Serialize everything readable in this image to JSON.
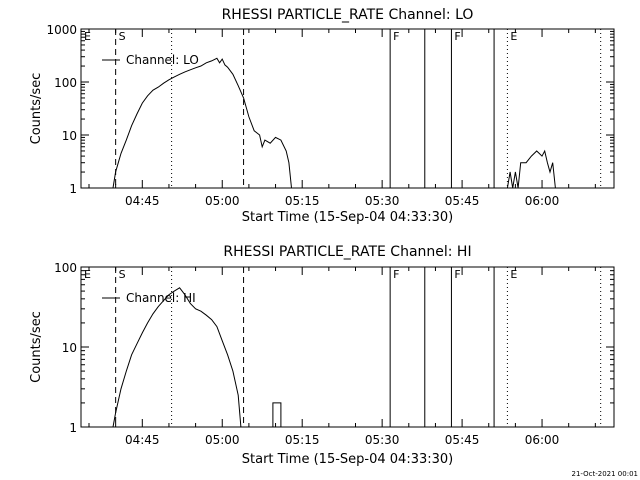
{
  "footer": {
    "date_stamp": "21-Oct-2021 00:01"
  },
  "chart_data": [
    {
      "type": "line",
      "title": "RHESSI PARTICLE_RATE Channel: LO",
      "xlabel": "Start Time (15-Sep-04 04:33:30)",
      "ylabel": "Counts/sec",
      "y_scale": "log",
      "ylim": [
        1,
        1000
      ],
      "xlim": [
        "04:33:30",
        "06:13:30"
      ],
      "x_ticks": [
        "04:45",
        "05:00",
        "05:15",
        "05:30",
        "05:45",
        "06:00"
      ],
      "y_ticks": [
        "1",
        "10",
        "100",
        "1000"
      ],
      "legend": {
        "label": "Channel: LO",
        "position": "top-left"
      },
      "markers": [
        {
          "time": "04:33:30",
          "style": "solid",
          "label": "E"
        },
        {
          "time": "04:40:00",
          "style": "dashed",
          "label": "S"
        },
        {
          "time": "04:50:30",
          "style": "dotted",
          "label": ""
        },
        {
          "time": "05:04:00",
          "style": "dashed",
          "label": ""
        },
        {
          "time": "05:31:30",
          "style": "solid",
          "label": "F"
        },
        {
          "time": "05:38:00",
          "style": "solid",
          "label": ""
        },
        {
          "time": "05:43:00",
          "style": "solid",
          "label": "F"
        },
        {
          "time": "05:51:00",
          "style": "solid",
          "label": ""
        },
        {
          "time": "05:53:30",
          "style": "dotted",
          "label": "E"
        },
        {
          "time": "06:11:00",
          "style": "dotted",
          "label": ""
        }
      ],
      "series": [
        {
          "segments": [
            [
              [
                "04:39:30",
                1
              ],
              [
                "04:40:00",
                2
              ],
              [
                "04:40:30",
                3
              ],
              [
                "04:41:00",
                4.5
              ],
              [
                "04:42:00",
                8
              ],
              [
                "04:43:00",
                15
              ],
              [
                "04:44:00",
                25
              ],
              [
                "04:45:00",
                40
              ],
              [
                "04:46:00",
                55
              ],
              [
                "04:47:00",
                70
              ],
              [
                "04:48:00",
                80
              ],
              [
                "04:49:00",
                95
              ],
              [
                "04:50:00",
                110
              ],
              [
                "04:51:00",
                125
              ],
              [
                "04:52:00",
                140
              ],
              [
                "04:53:00",
                155
              ],
              [
                "04:54:00",
                170
              ],
              [
                "04:55:00",
                185
              ],
              [
                "04:56:00",
                200
              ],
              [
                "04:57:00",
                230
              ],
              [
                "04:58:00",
                250
              ],
              [
                "04:59:00",
                280
              ],
              [
                "04:59:30",
                230
              ],
              [
                "05:00:00",
                270
              ],
              [
                "05:00:30",
                210
              ],
              [
                "05:01:00",
                190
              ],
              [
                "05:02:00",
                140
              ],
              [
                "05:03:00",
                85
              ],
              [
                "05:04:00",
                50
              ],
              [
                "05:05:00",
                22
              ],
              [
                "05:06:00",
                12
              ],
              [
                "05:07:00",
                10
              ],
              [
                "05:07:30",
                6
              ],
              [
                "05:08:00",
                8
              ],
              [
                "05:09:00",
                7
              ],
              [
                "05:10:00",
                9
              ],
              [
                "05:11:00",
                8
              ],
              [
                "05:12:00",
                5
              ],
              [
                "05:12:30",
                3
              ],
              [
                "05:13:00",
                1
              ]
            ],
            [
              [
                "05:53:30",
                1
              ],
              [
                "05:54:00",
                2
              ],
              [
                "05:54:30",
                1
              ],
              [
                "05:55:00",
                2
              ],
              [
                "05:55:30",
                1
              ],
              [
                "05:56:00",
                3
              ],
              [
                "05:57:00",
                3
              ],
              [
                "05:58:00",
                4
              ],
              [
                "05:59:00",
                5
              ],
              [
                "06:00:00",
                4
              ],
              [
                "06:00:30",
                5
              ],
              [
                "06:01:00",
                3
              ],
              [
                "06:01:30",
                2
              ],
              [
                "06:02:00",
                3
              ],
              [
                "06:02:30",
                1
              ]
            ]
          ]
        }
      ]
    },
    {
      "type": "line",
      "title": "RHESSI PARTICLE_RATE Channel: HI",
      "xlabel": "Start Time (15-Sep-04 04:33:30)",
      "ylabel": "Counts/sec",
      "y_scale": "log",
      "ylim": [
        1,
        100
      ],
      "xlim": [
        "04:33:30",
        "06:13:30"
      ],
      "x_ticks": [
        "04:45",
        "05:00",
        "05:15",
        "05:30",
        "05:45",
        "06:00"
      ],
      "y_ticks": [
        "1",
        "10",
        "100"
      ],
      "legend": {
        "label": "Channel: HI",
        "position": "top-left"
      },
      "markers": [
        {
          "time": "04:33:30",
          "style": "solid",
          "label": "E"
        },
        {
          "time": "04:40:00",
          "style": "dashed",
          "label": "S"
        },
        {
          "time": "04:50:30",
          "style": "dotted",
          "label": ""
        },
        {
          "time": "05:04:00",
          "style": "dashed",
          "label": ""
        },
        {
          "time": "05:31:30",
          "style": "solid",
          "label": "F"
        },
        {
          "time": "05:38:00",
          "style": "solid",
          "label": ""
        },
        {
          "time": "05:43:00",
          "style": "solid",
          "label": "F"
        },
        {
          "time": "05:51:00",
          "style": "solid",
          "label": ""
        },
        {
          "time": "05:53:30",
          "style": "dotted",
          "label": "E"
        },
        {
          "time": "06:11:00",
          "style": "dotted",
          "label": ""
        }
      ],
      "series": [
        {
          "segments": [
            [
              [
                "04:39:30",
                1
              ],
              [
                "04:40:00",
                1.5
              ],
              [
                "04:41:00",
                3
              ],
              [
                "04:42:00",
                5
              ],
              [
                "04:43:00",
                8
              ],
              [
                "04:44:00",
                11
              ],
              [
                "04:45:00",
                15
              ],
              [
                "04:46:00",
                20
              ],
              [
                "04:47:00",
                26
              ],
              [
                "04:48:00",
                32
              ],
              [
                "04:49:00",
                38
              ],
              [
                "04:50:00",
                45
              ],
              [
                "04:51:00",
                50
              ],
              [
                "04:52:00",
                55
              ],
              [
                "04:53:00",
                45
              ],
              [
                "04:54:00",
                35
              ],
              [
                "04:55:00",
                30
              ],
              [
                "04:56:00",
                28
              ],
              [
                "04:57:00",
                25
              ],
              [
                "04:58:00",
                22
              ],
              [
                "04:59:00",
                18
              ],
              [
                "05:00:00",
                12
              ],
              [
                "05:01:00",
                8
              ],
              [
                "05:02:00",
                5
              ],
              [
                "05:03:00",
                2.5
              ],
              [
                "05:03:30",
                1
              ]
            ],
            [
              [
                "05:09:30",
                1
              ],
              [
                "05:09:30",
                2
              ],
              [
                "05:11:00",
                2
              ],
              [
                "05:11:00",
                1
              ]
            ]
          ]
        }
      ]
    }
  ]
}
